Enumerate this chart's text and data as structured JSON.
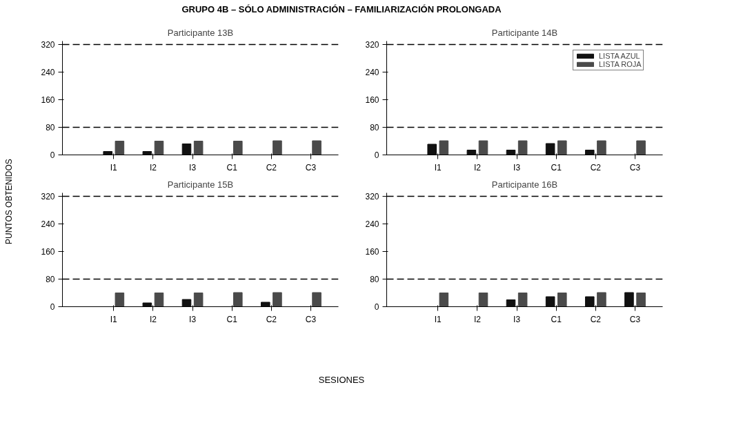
{
  "chart_data": [
    {
      "type": "bar",
      "title": "GRUPO 4B – SÓLO ADMINISTRACIÓN – FAMILIARIZACIÓN PROLONGADA",
      "subtitle": "Participante 13B",
      "ylabel": "PUNTOS OBTENIDOS",
      "categories": [
        "I1",
        "I2",
        "I3",
        "C1",
        "C2",
        "C3"
      ],
      "ylim": [
        0,
        330
      ],
      "yticks": [
        0,
        80,
        160,
        240,
        320
      ],
      "grid": false,
      "series": [
        {
          "color": "#111111",
          "values": [
            10,
            10,
            32,
            0,
            0,
            0
          ]
        },
        {
          "color": "#4a4a4a",
          "values": [
            40,
            40,
            40,
            40,
            41,
            41
          ]
        }
      ],
      "ref_lines": [
        {
          "axis": "y",
          "value": 80,
          "line_style": "dashed",
          "color": "#000000"
        },
        {
          "axis": "y",
          "value": 320,
          "line_style": "dashed",
          "color": "#000000"
        }
      ]
    },
    {
      "type": "bar",
      "subtitle": "Participante 14B",
      "categories": [
        "I1",
        "I2",
        "I3",
        "C1",
        "C2",
        "C3"
      ],
      "ylim": [
        0,
        330
      ],
      "yticks": [
        0,
        80,
        160,
        240,
        320
      ],
      "grid": false,
      "legend": "top right",
      "series": [
        {
          "name": "LISTA AZUL",
          "color": "#111111",
          "values": [
            31,
            14,
            14,
            33,
            14,
            0
          ]
        },
        {
          "name": "LISTA ROJA",
          "color": "#4a4a4a",
          "values": [
            41,
            41,
            41,
            41,
            41,
            41
          ]
        }
      ],
      "ref_lines": [
        {
          "axis": "y",
          "value": 80,
          "line_style": "dashed",
          "color": "#000000"
        },
        {
          "axis": "y",
          "value": 320,
          "line_style": "dashed",
          "color": "#000000"
        }
      ]
    },
    {
      "type": "bar",
      "subtitle": "Participante 15B",
      "xlabel": "SESIONES",
      "categories": [
        "I1",
        "I2",
        "I3",
        "C1",
        "C2",
        "C3"
      ],
      "ylim": [
        0,
        330
      ],
      "yticks": [
        0,
        80,
        160,
        240,
        320
      ],
      "grid": false,
      "series": [
        {
          "color": "#111111",
          "values": [
            0,
            11,
            21,
            0,
            13,
            0
          ]
        },
        {
          "color": "#4a4a4a",
          "values": [
            40,
            40,
            40,
            41,
            41,
            41
          ]
        }
      ],
      "ref_lines": [
        {
          "axis": "y",
          "value": 80,
          "line_style": "dashed",
          "color": "#000000"
        },
        {
          "axis": "y",
          "value": 320,
          "line_style": "dashed",
          "color": "#000000"
        }
      ]
    },
    {
      "type": "bar",
      "subtitle": "Participante 16B",
      "categories": [
        "I1",
        "I2",
        "I3",
        "C1",
        "C2",
        "C3"
      ],
      "ylim": [
        0,
        330
      ],
      "yticks": [
        0,
        80,
        160,
        240,
        320
      ],
      "grid": false,
      "series": [
        {
          "color": "#111111",
          "values": [
            0,
            0,
            20,
            29,
            29,
            41
          ]
        },
        {
          "color": "#4a4a4a",
          "values": [
            40,
            40,
            40,
            40,
            41,
            40
          ]
        }
      ],
      "ref_lines": [
        {
          "axis": "y",
          "value": 80,
          "line_style": "dashed",
          "color": "#000000"
        },
        {
          "axis": "y",
          "value": 320,
          "line_style": "dashed",
          "color": "#000000"
        }
      ]
    }
  ]
}
